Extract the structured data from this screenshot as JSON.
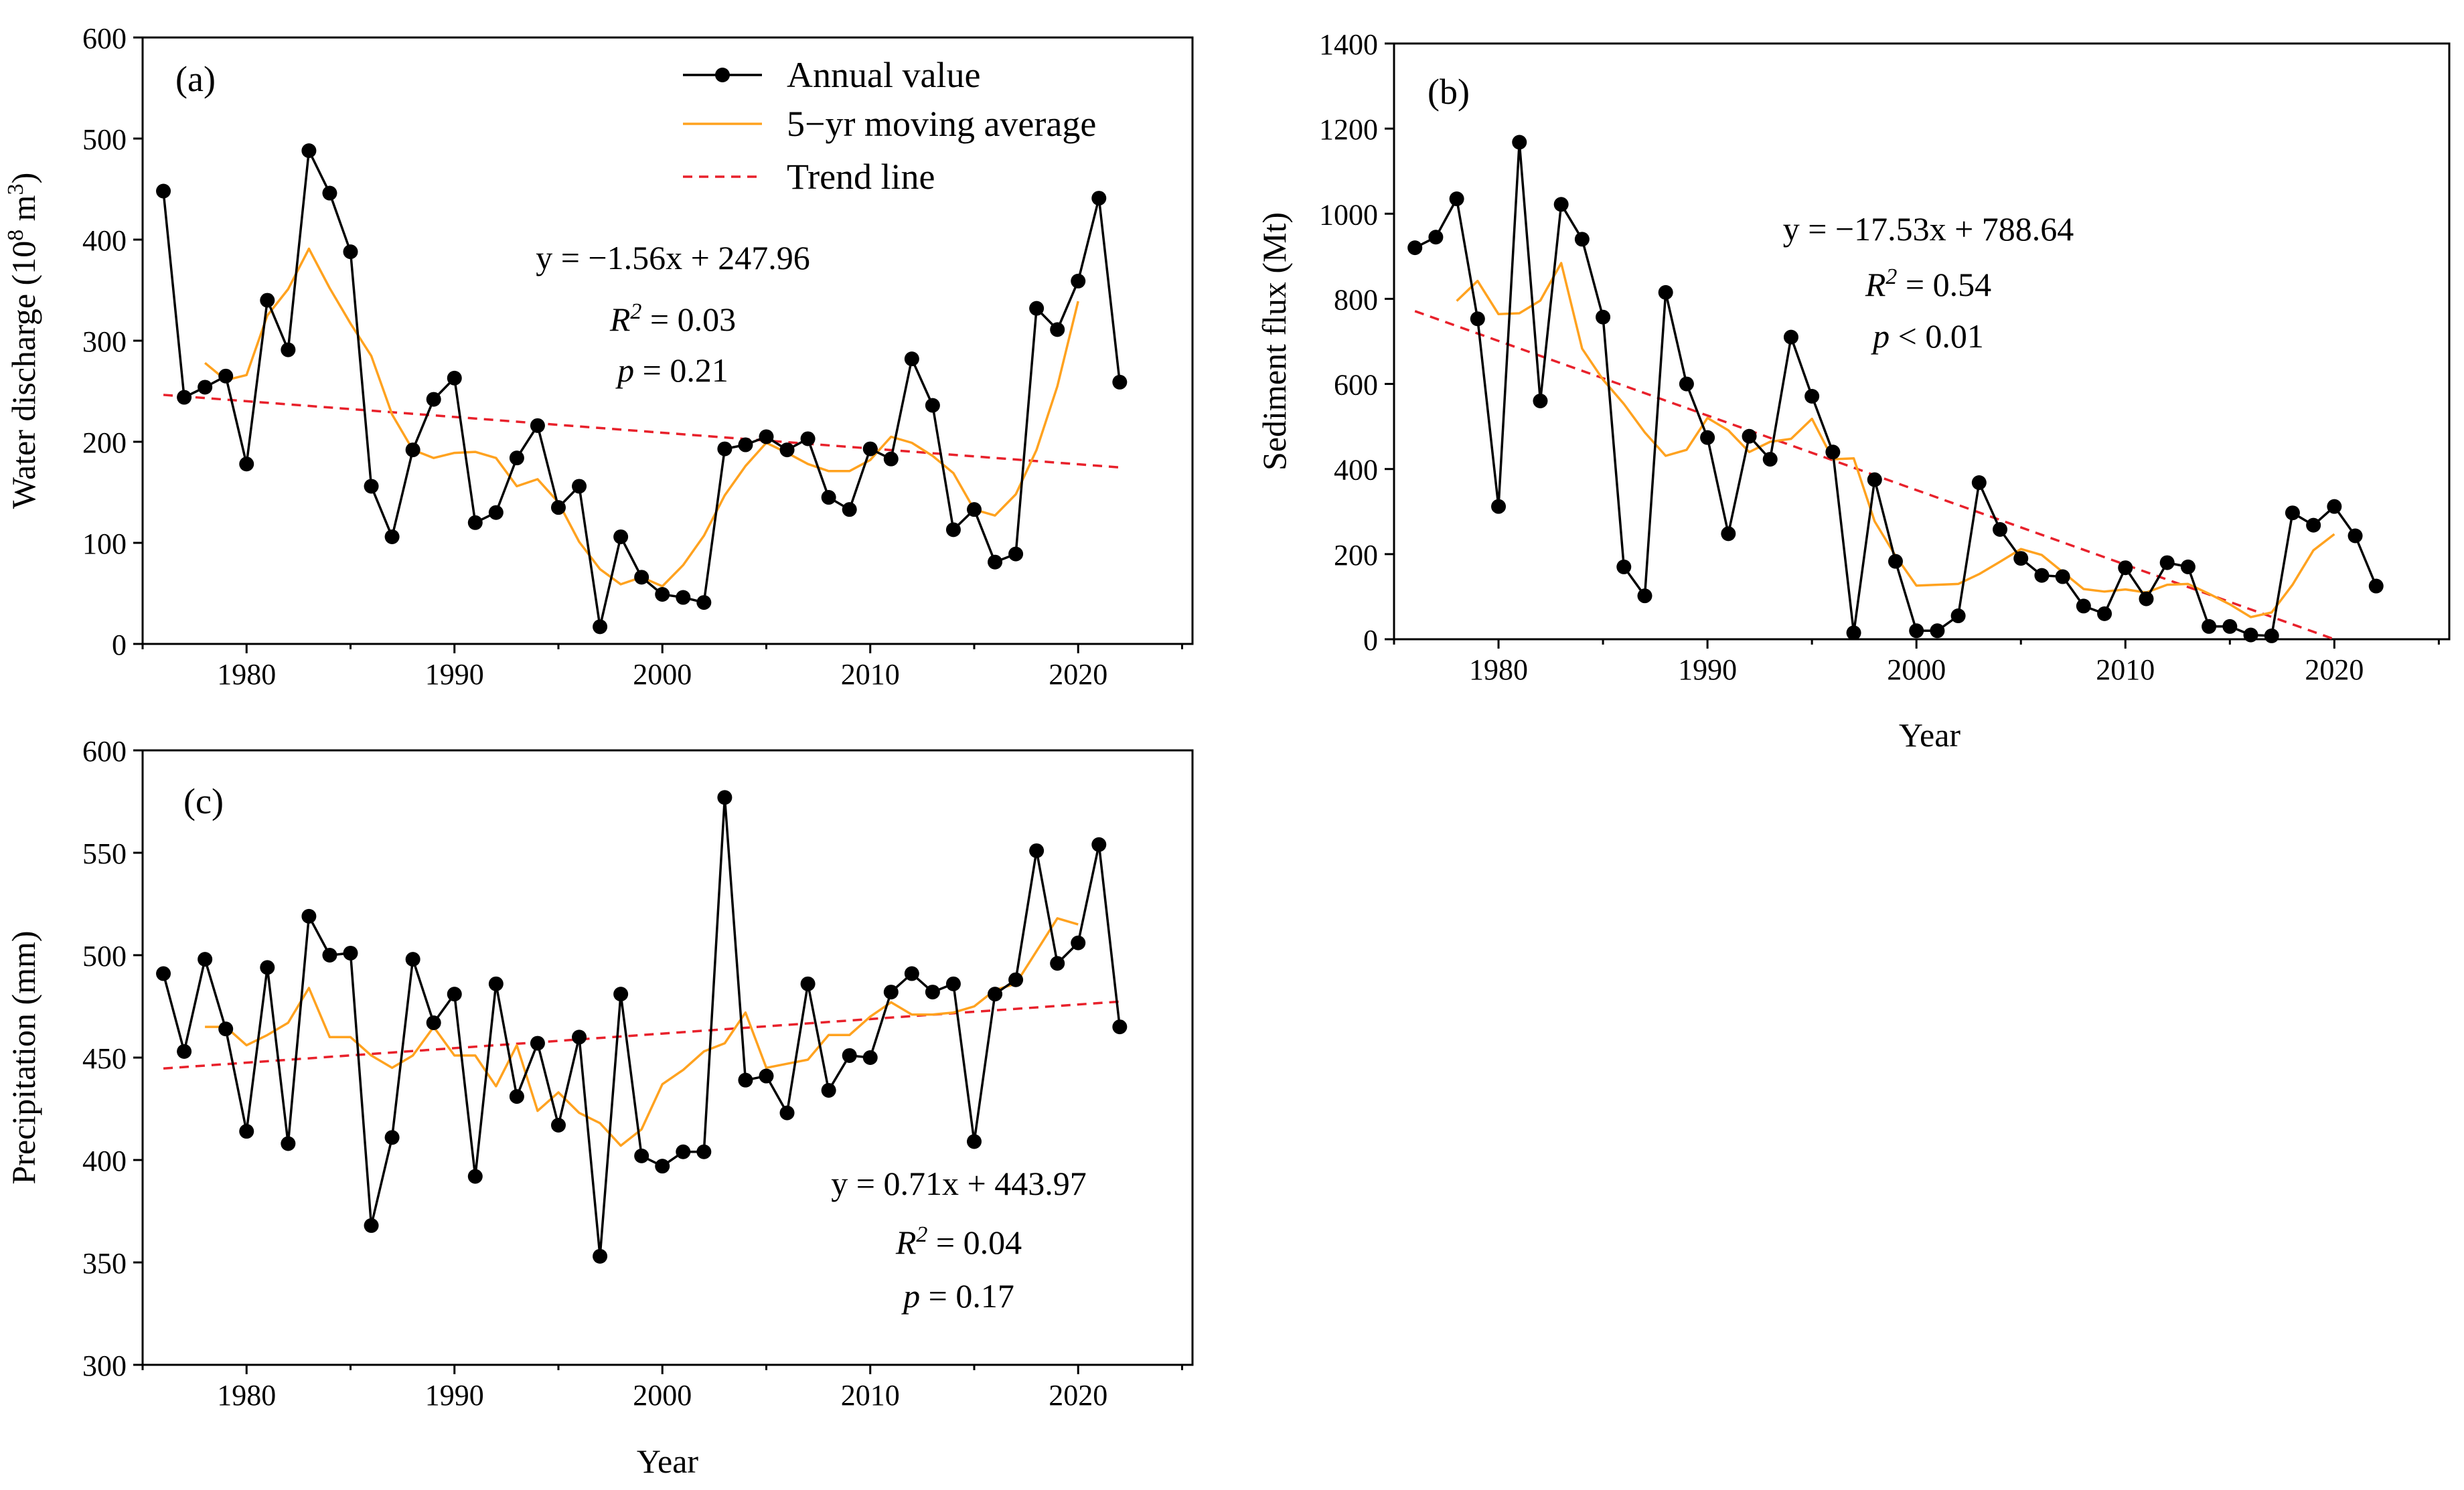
{
  "legend": {
    "annual": "Annual value",
    "moving": "5−yr moving average",
    "trend": "Trend line"
  },
  "colors": {
    "annual": "#000000",
    "moving": "#FFA21F",
    "trend": "#E8212B"
  },
  "chart_data": [
    {
      "panel": "(a)",
      "type": "line",
      "xlabel": "",
      "ylabel_text": "Water discharge (10",
      "ylabel_sup1": "8",
      "ylabel_mid": " m",
      "ylabel_sup2": "3",
      "ylabel_end": ")",
      "xlim": [
        1975,
        2025.5
      ],
      "ylim": [
        0,
        600
      ],
      "xticks": [
        1980,
        1990,
        2000,
        2010,
        2020
      ],
      "yticks": [
        0,
        100,
        200,
        300,
        400,
        500,
        600
      ],
      "grid": false,
      "legend_position": "top-center",
      "eq_line1": "y = −1.56x + 247.96",
      "r2_prefix": "R",
      "r2_sup": "2",
      "r2_value": " = 0.03",
      "p_prefix": "p",
      "p_value": " = 0.21",
      "trend": {
        "slope": -1.56,
        "intercept": 247.96,
        "x0": 1976,
        "x_start": 1976,
        "x_end": 2022
      },
      "series": [
        {
          "name": "Annual value",
          "x": [
            1976,
            1977,
            1978,
            1979,
            1980,
            1981,
            1982,
            1983,
            1984,
            1985,
            1986,
            1987,
            1988,
            1989,
            1990,
            1991,
            1992,
            1993,
            1994,
            1995,
            1996,
            1997,
            1998,
            1999,
            2000,
            2001,
            2002,
            2003,
            2004,
            2005,
            2006,
            2007,
            2008,
            2009,
            2010,
            2011,
            2012,
            2013,
            2014,
            2015,
            2016,
            2017,
            2018,
            2019,
            2020,
            2021,
            2022
          ],
          "values": [
            448,
            244,
            254,
            265,
            178,
            340,
            291,
            488,
            446,
            388,
            156,
            106,
            192,
            242,
            263,
            120,
            130,
            184,
            216,
            135,
            156,
            17,
            106,
            66,
            49,
            46,
            41,
            193,
            197,
            205,
            192,
            203,
            145,
            133,
            193,
            183,
            282,
            236,
            113,
            133,
            81,
            89,
            332,
            311,
            359,
            441,
            259
          ]
        },
        {
          "name": "5−yr moving average",
          "x": [
            1978,
            1979,
            1980,
            1981,
            1982,
            1983,
            1984,
            1985,
            1986,
            1987,
            1988,
            1989,
            1990,
            1991,
            1992,
            1993,
            1994,
            1995,
            1996,
            1997,
            1998,
            1999,
            2000,
            2001,
            2002,
            2003,
            2004,
            2005,
            2006,
            2007,
            2008,
            2009,
            2010,
            2011,
            2012,
            2013,
            2014,
            2015,
            2016,
            2017,
            2018,
            2019,
            2020
          ],
          "values": [
            278,
            261,
            266,
            325,
            351,
            391,
            352,
            317,
            285,
            227,
            192,
            184,
            189,
            190,
            184,
            156,
            163,
            140,
            101,
            74,
            59,
            66,
            57,
            78,
            107,
            147,
            176,
            199,
            189,
            178,
            171,
            171,
            182,
            205,
            199,
            186,
            169,
            133,
            127,
            148,
            192,
            255,
            339
          ]
        }
      ]
    },
    {
      "panel": "(b)",
      "type": "line",
      "xlabel": "Year",
      "ylabel_text": "Sediment flux (Mt)",
      "xlim": [
        1975,
        2025.5
      ],
      "ylim": [
        0,
        1400
      ],
      "xticks": [
        1980,
        1990,
        2000,
        2010,
        2020
      ],
      "yticks": [
        0,
        200,
        400,
        600,
        800,
        1000,
        1200,
        1400
      ],
      "grid": false,
      "eq_line1": "y = −17.53x + 788.64",
      "r2_prefix": "R",
      "r2_sup": "2",
      "r2_value": " = 0.54",
      "p_prefix": "p",
      "p_value": " < 0.01",
      "trend": {
        "slope": -17.53,
        "intercept": 788.64,
        "x0": 1975,
        "x_start": 1976,
        "x_end": 2020
      },
      "series": [
        {
          "name": "Annual value",
          "x": [
            1976,
            1977,
            1978,
            1979,
            1980,
            1981,
            1982,
            1983,
            1984,
            1985,
            1986,
            1987,
            1988,
            1989,
            1990,
            1991,
            1992,
            1993,
            1994,
            1995,
            1996,
            1997,
            1998,
            1999,
            2000,
            2001,
            2002,
            2003,
            2004,
            2005,
            2006,
            2007,
            2008,
            2009,
            2010,
            2011,
            2012,
            2013,
            2014,
            2015,
            2016,
            2017,
            2018,
            2019,
            2020,
            2021,
            2022
          ],
          "values": [
            920,
            945,
            1035,
            753,
            312,
            1168,
            560,
            1022,
            940,
            757,
            170,
            102,
            815,
            600,
            474,
            248,
            477,
            423,
            710,
            571,
            440,
            15,
            375,
            183,
            20,
            20,
            55,
            368,
            258,
            190,
            150,
            147,
            78,
            60,
            168,
            95,
            180,
            170,
            30,
            30,
            10,
            8,
            297,
            268,
            312,
            243,
            125
          ]
        },
        {
          "name": "5−yr moving average",
          "x": [
            1978,
            1979,
            1980,
            1981,
            1982,
            1983,
            1984,
            1985,
            1986,
            1987,
            1988,
            1989,
            1990,
            1991,
            1992,
            1993,
            1994,
            1995,
            1996,
            1997,
            1998,
            1999,
            2000,
            2001,
            2002,
            2003,
            2004,
            2005,
            2006,
            2007,
            2008,
            2009,
            2010,
            2011,
            2012,
            2013,
            2014,
            2015,
            2016,
            2017,
            2018,
            2019,
            2020
          ],
          "values": [
            795,
            842,
            764,
            766,
            796,
            884,
            683,
            610,
            553,
            486,
            431,
            445,
            520,
            491,
            440,
            464,
            471,
            518,
            423,
            425,
            277,
            196,
            126,
            128,
            130,
            153,
            182,
            212,
            198,
            158,
            118,
            112,
            117,
            110,
            128,
            130,
            107,
            82,
            52,
            63,
            128,
            209,
            247
          ]
        }
      ]
    },
    {
      "panel": "(c)",
      "type": "line",
      "xlabel": "Year",
      "ylabel_text": "Precipitation (mm)",
      "xlim": [
        1975,
        2025.5
      ],
      "ylim": [
        300,
        600
      ],
      "xticks": [
        1980,
        1990,
        2000,
        2010,
        2020
      ],
      "yticks": [
        300,
        350,
        400,
        450,
        500,
        550,
        600
      ],
      "grid": false,
      "eq_line1": "y = 0.71x + 443.97",
      "r2_prefix": "R",
      "r2_sup": "2",
      "r2_value": " = 0.04",
      "p_prefix": "p",
      "p_value": " = 0.17",
      "trend": {
        "slope": 0.71,
        "intercept": 443.97,
        "x0": 1975,
        "x_start": 1976,
        "x_end": 2022
      },
      "series": [
        {
          "name": "Annual value",
          "x": [
            1976,
            1977,
            1978,
            1979,
            1980,
            1981,
            1982,
            1983,
            1984,
            1985,
            1986,
            1987,
            1988,
            1989,
            1990,
            1991,
            1992,
            1993,
            1994,
            1995,
            1996,
            1997,
            1998,
            1999,
            2000,
            2001,
            2002,
            2003,
            2004,
            2005,
            2006,
            2007,
            2008,
            2009,
            2010,
            2011,
            2012,
            2013,
            2014,
            2015,
            2016,
            2017,
            2018,
            2019,
            2020,
            2021,
            2022
          ],
          "values": [
            491,
            453,
            498,
            464,
            414,
            494,
            408,
            519,
            500,
            501,
            368,
            411,
            498,
            467,
            481,
            392,
            486,
            431,
            457,
            417,
            460,
            353,
            481,
            402,
            397,
            404,
            404,
            577,
            439,
            441,
            423,
            486,
            434,
            451,
            450,
            482,
            491,
            482,
            486,
            409,
            481,
            488,
            551,
            496,
            506,
            554,
            465
          ]
        },
        {
          "name": "5−yr moving average",
          "x": [
            1978,
            1979,
            1980,
            1981,
            1982,
            1983,
            1984,
            1985,
            1986,
            1987,
            1988,
            1989,
            1990,
            1991,
            1992,
            1993,
            1994,
            1995,
            1996,
            1997,
            1998,
            1999,
            2000,
            2001,
            2002,
            2003,
            2004,
            2005,
            2006,
            2007,
            2008,
            2009,
            2010,
            2011,
            2012,
            2013,
            2014,
            2015,
            2016,
            2017,
            2018,
            2019,
            2020
          ],
          "values": [
            465,
            465,
            456,
            461,
            467,
            484,
            460,
            460,
            451,
            445,
            451,
            465,
            451,
            451,
            436,
            456,
            424,
            433,
            423,
            418,
            407,
            415,
            437,
            444,
            453,
            457,
            472,
            445,
            447,
            449,
            461,
            461,
            470,
            477,
            471,
            471,
            472,
            475,
            483,
            486,
            502,
            518,
            515
          ]
        }
      ]
    }
  ]
}
